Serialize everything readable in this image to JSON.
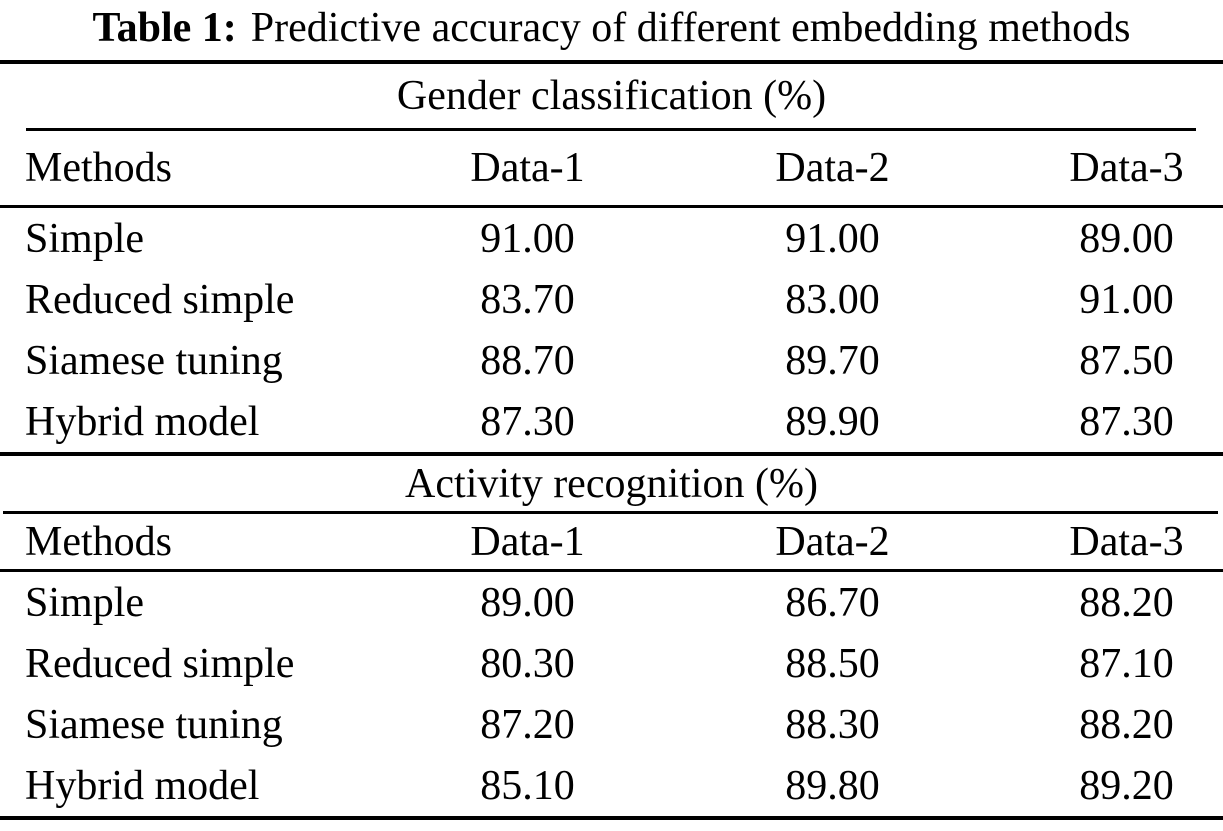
{
  "caption": {
    "label": "Table 1:",
    "text": "Predictive accuracy of different embedding methods"
  },
  "table": {
    "sections": [
      {
        "title": "Gender classification (%)",
        "columns": [
          "Methods",
          "Data-1",
          "Data-2",
          "Data-3"
        ],
        "rows": [
          {
            "method": "Simple",
            "values": [
              "91.00",
              "91.00",
              "89.00"
            ]
          },
          {
            "method": "Reduced simple",
            "values": [
              "83.70",
              "83.00",
              "91.00"
            ]
          },
          {
            "method": "Siamese tuning",
            "values": [
              "88.70",
              "89.70",
              "87.50"
            ]
          },
          {
            "method": "Hybrid model",
            "values": [
              "87.30",
              "89.90",
              "87.30"
            ]
          }
        ]
      },
      {
        "title": "Activity recognition (%)",
        "columns": [
          "Methods",
          "Data-1",
          "Data-2",
          "Data-3"
        ],
        "rows": [
          {
            "method": "Simple",
            "values": [
              "89.00",
              "86.70",
              "88.20"
            ]
          },
          {
            "method": "Reduced simple",
            "values": [
              "80.30",
              "88.50",
              "87.10"
            ]
          },
          {
            "method": "Siamese tuning",
            "values": [
              "87.20",
              "88.30",
              "88.20"
            ]
          },
          {
            "method": "Hybrid model",
            "values": [
              "85.10",
              "89.80",
              "89.20"
            ]
          }
        ]
      }
    ]
  },
  "colors": {
    "text": "#000000",
    "background": "#ffffff",
    "rule": "#000000"
  }
}
